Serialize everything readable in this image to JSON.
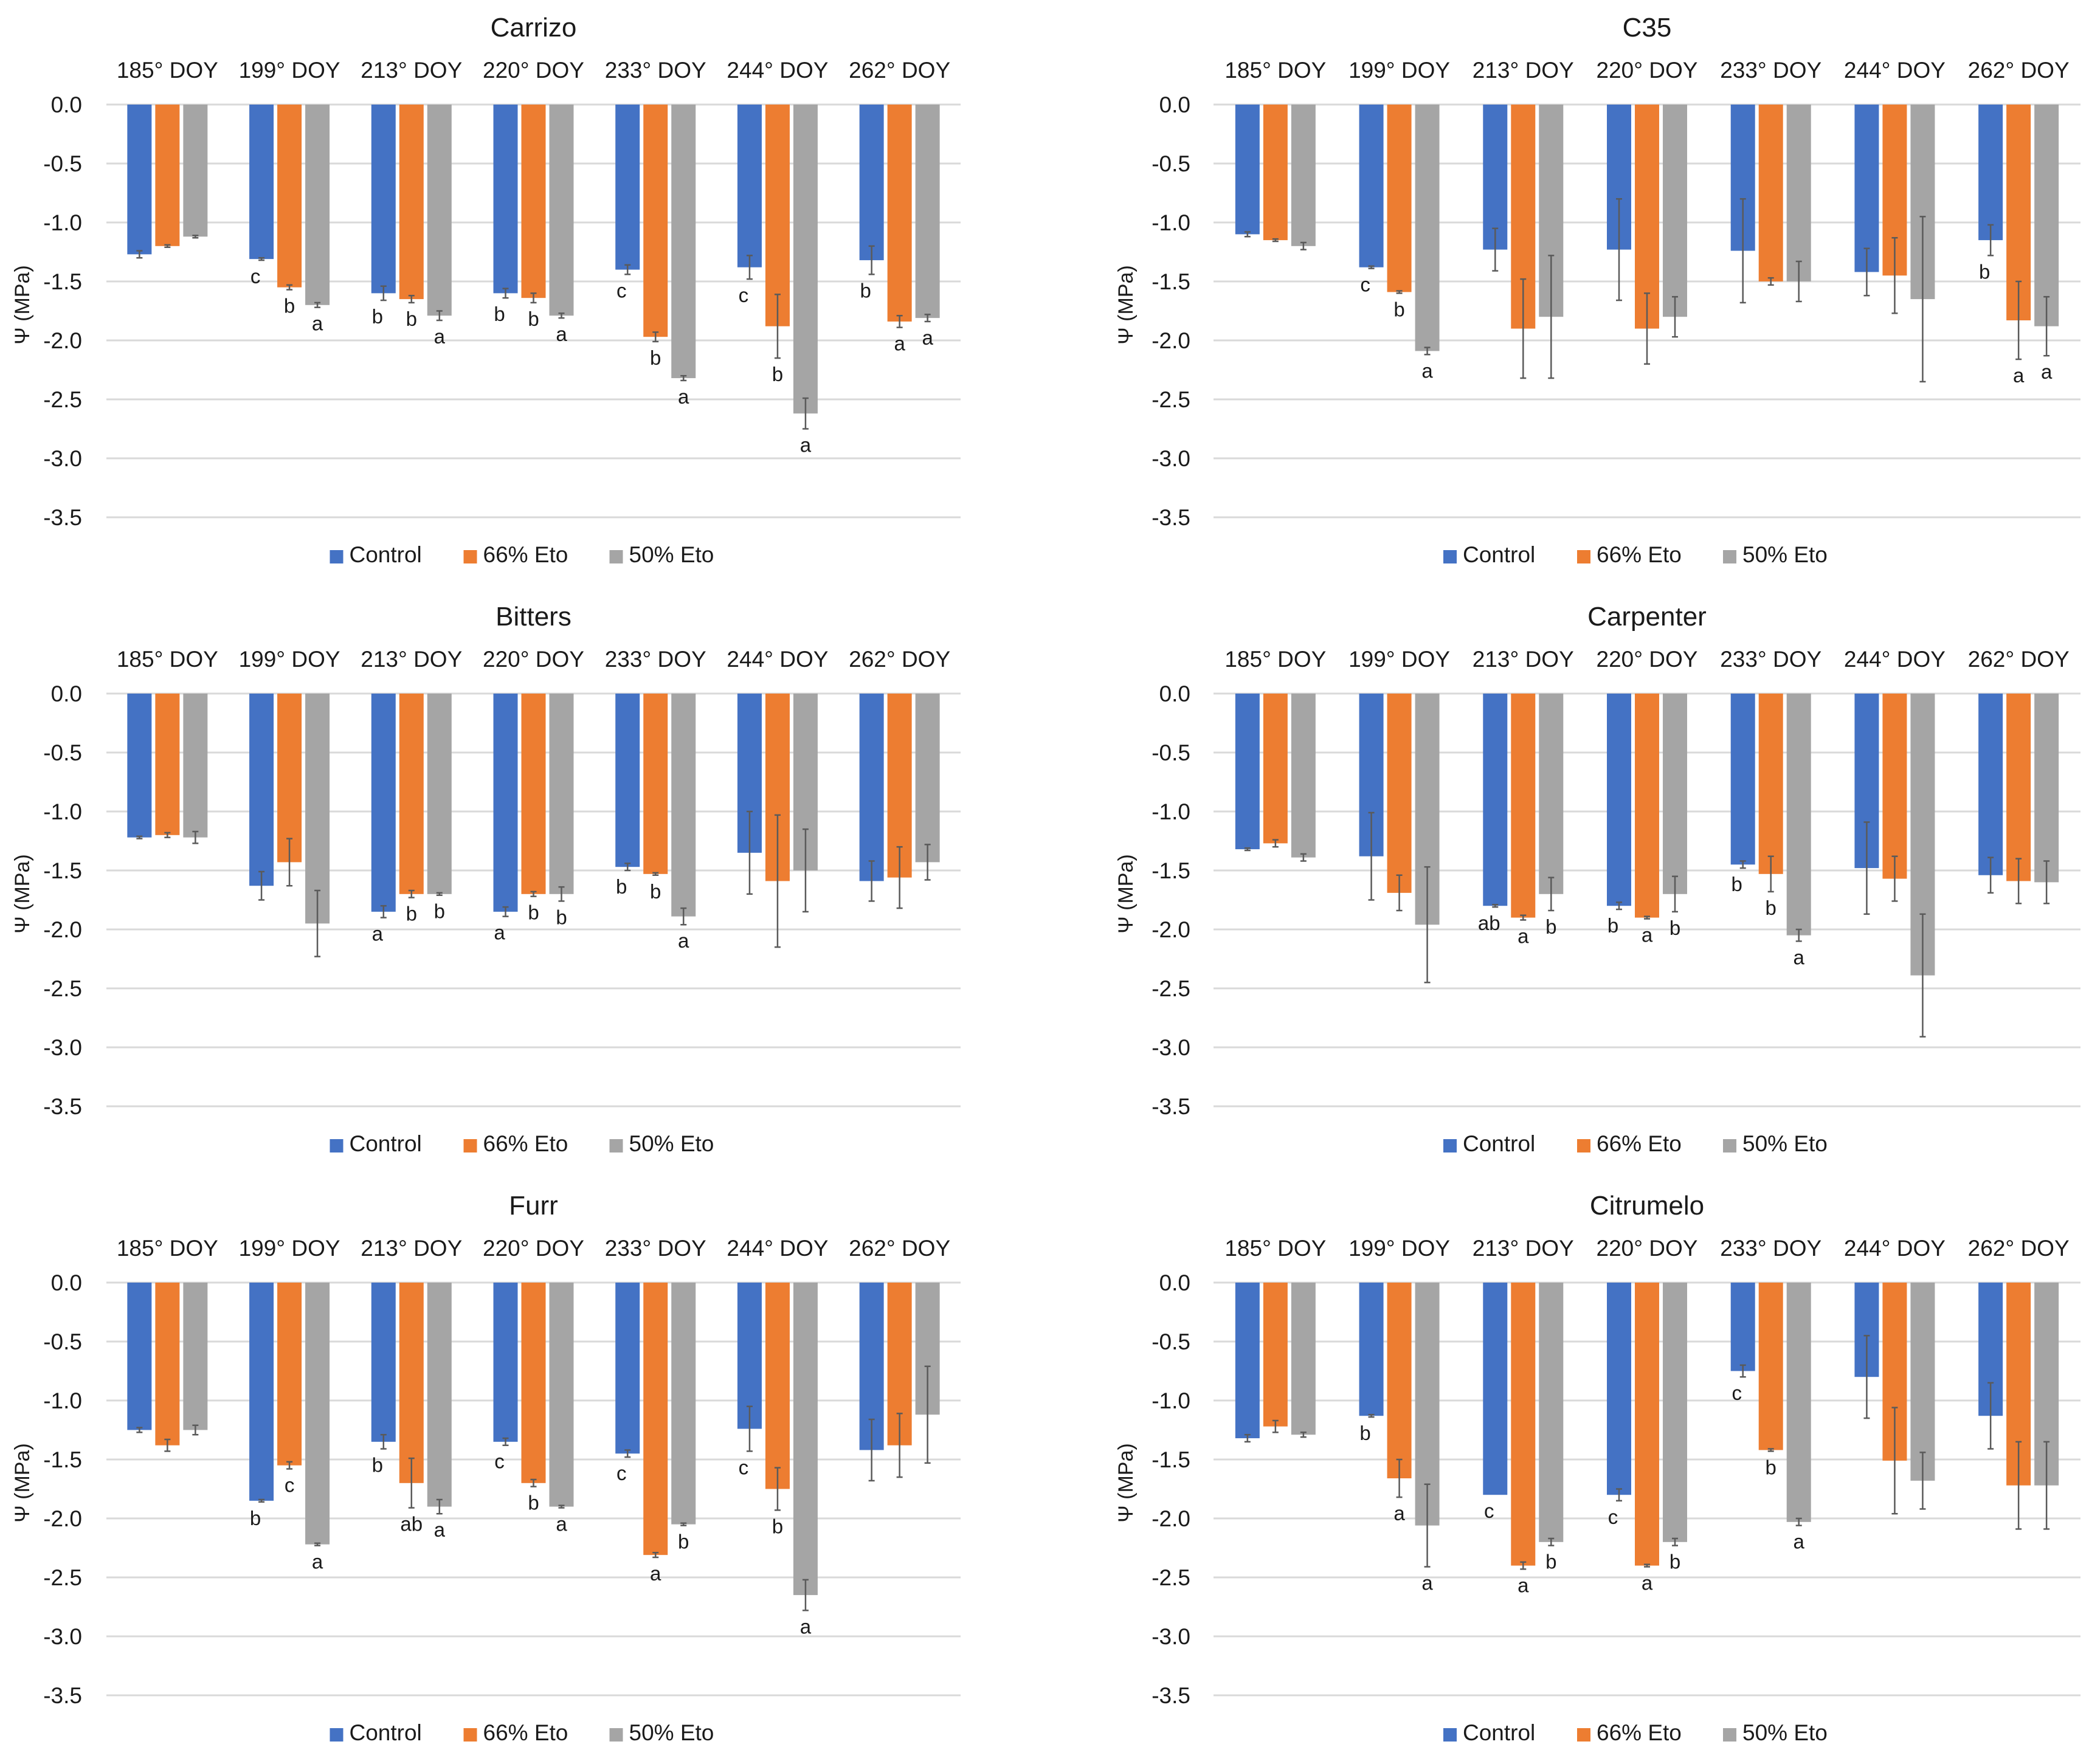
{
  "figure": {
    "legend": [
      {
        "name": "Control",
        "color": "#4472C4"
      },
      {
        "name": "66% Eto",
        "color": "#ED7D31"
      },
      {
        "name": "50% Eto",
        "color": "#A5A5A5"
      }
    ]
  },
  "chart_data": [
    {
      "type": "bar",
      "title": "Carrizo",
      "xlabel": "",
      "ylabel": "Ψ (MPa)",
      "ylim": [
        -3.5,
        0.0
      ],
      "yticks": [
        "0.0",
        "-0.5",
        "-1.0",
        "-1.5",
        "-2.0",
        "-2.5",
        "-3.0",
        "-3.5"
      ],
      "ytick_values": [
        0.0,
        -0.5,
        -1.0,
        -1.5,
        -2.0,
        -2.5,
        -3.0,
        -3.5
      ],
      "grid": true,
      "legend_position": "bottom",
      "categories": [
        "185° DOY",
        "199° DOY",
        "213° DOY",
        "220° DOY",
        "233° DOY",
        "244° DOY",
        "262° DOY"
      ],
      "series": [
        {
          "name": "Control",
          "values": [
            -1.27,
            -1.31,
            -1.6,
            -1.6,
            -1.4,
            -1.38,
            -1.32
          ],
          "error": [
            0.03,
            0.01,
            0.06,
            0.04,
            0.04,
            0.1,
            0.12
          ],
          "letters": [
            "",
            "c",
            "b",
            "b",
            "c",
            "c",
            "b"
          ]
        },
        {
          "name": "66% Eto",
          "values": [
            -1.2,
            -1.55,
            -1.65,
            -1.64,
            -1.97,
            -1.88,
            -1.84
          ],
          "error": [
            0.01,
            0.02,
            0.03,
            0.04,
            0.04,
            0.27,
            0.05
          ],
          "letters": [
            "",
            "b",
            "b",
            "b",
            "b",
            "b",
            "a"
          ]
        },
        {
          "name": "50% Eto",
          "values": [
            -1.12,
            -1.7,
            -1.79,
            -1.79,
            -2.32,
            -2.62,
            -1.81
          ],
          "error": [
            0.01,
            0.02,
            0.04,
            0.02,
            0.02,
            0.13,
            0.03
          ],
          "letters": [
            "",
            "a",
            "a",
            "a",
            "a",
            "a",
            "a"
          ]
        }
      ]
    },
    {
      "type": "bar",
      "title": "C35",
      "xlabel": "",
      "ylabel": "Ψ (MPa)",
      "ylim": [
        -3.5,
        0.0
      ],
      "yticks": [
        "0.0",
        "-0.5",
        "-1.0",
        "-1.5",
        "-2.0",
        "-2.5",
        "-3.0",
        "-3.5"
      ],
      "ytick_values": [
        0.0,
        -0.5,
        -1.0,
        -1.5,
        -2.0,
        -2.5,
        -3.0,
        -3.5
      ],
      "grid": true,
      "legend_position": "bottom",
      "categories": [
        "185° DOY",
        "199° DOY",
        "213° DOY",
        "220° DOY",
        "233° DOY",
        "244° DOY",
        "262° DOY"
      ],
      "series": [
        {
          "name": "Control",
          "values": [
            -1.1,
            -1.38,
            -1.23,
            -1.23,
            -1.24,
            -1.42,
            -1.15
          ],
          "error": [
            0.02,
            0.01,
            0.18,
            0.43,
            0.44,
            0.2,
            0.13
          ],
          "letters": [
            "",
            "c",
            "",
            "",
            "",
            "",
            "b"
          ]
        },
        {
          "name": "66% Eto",
          "values": [
            -1.15,
            -1.59,
            -1.9,
            -1.9,
            -1.5,
            -1.45,
            -1.83
          ],
          "error": [
            0.01,
            0.01,
            0.42,
            0.3,
            0.03,
            0.32,
            0.33
          ],
          "letters": [
            "",
            "b",
            "",
            "",
            "",
            "",
            "a"
          ]
        },
        {
          "name": "50% Eto",
          "values": [
            -1.2,
            -2.09,
            -1.8,
            -1.8,
            -1.5,
            -1.65,
            -1.88
          ],
          "error": [
            0.03,
            0.03,
            0.52,
            0.17,
            0.17,
            0.7,
            0.25
          ],
          "letters": [
            "",
            "a",
            "",
            "",
            "",
            "",
            "a"
          ]
        }
      ]
    },
    {
      "type": "bar",
      "title": "Bitters",
      "xlabel": "",
      "ylabel": "Ψ (MPa)",
      "ylim": [
        -3.5,
        0.0
      ],
      "yticks": [
        "0.0",
        "-0.5",
        "-1.0",
        "-1.5",
        "-2.0",
        "-2.5",
        "-3.0",
        "-3.5"
      ],
      "ytick_values": [
        0.0,
        -0.5,
        -1.0,
        -1.5,
        -2.0,
        -2.5,
        -3.0,
        -3.5
      ],
      "grid": true,
      "legend_position": "bottom",
      "categories": [
        "185° DOY",
        "199° DOY",
        "213° DOY",
        "220° DOY",
        "233° DOY",
        "244° DOY",
        "262° DOY"
      ],
      "series": [
        {
          "name": "Control",
          "values": [
            -1.22,
            -1.63,
            -1.85,
            -1.85,
            -1.47,
            -1.35,
            -1.59
          ],
          "error": [
            0.01,
            0.12,
            0.05,
            0.04,
            0.03,
            0.35,
            0.17
          ],
          "letters": [
            "",
            "",
            "a",
            "a",
            "b",
            "",
            ""
          ]
        },
        {
          "name": "66% Eto",
          "values": [
            -1.2,
            -1.43,
            -1.7,
            -1.7,
            -1.53,
            -1.59,
            -1.56
          ],
          "error": [
            0.02,
            0.2,
            0.03,
            0.02,
            0.01,
            0.56,
            0.26
          ],
          "letters": [
            "",
            "",
            "b",
            "b",
            "b",
            "",
            ""
          ]
        },
        {
          "name": "50% Eto",
          "values": [
            -1.22,
            -1.95,
            -1.7,
            -1.7,
            -1.89,
            -1.5,
            -1.43
          ],
          "error": [
            0.05,
            0.28,
            0.01,
            0.06,
            0.07,
            0.35,
            0.15
          ],
          "letters": [
            "",
            "",
            "b",
            "b",
            "a",
            "",
            ""
          ]
        }
      ]
    },
    {
      "type": "bar",
      "title": "Carpenter",
      "xlabel": "",
      "ylabel": "Ψ (MPa)",
      "ylim": [
        -3.5,
        0.0
      ],
      "yticks": [
        "0.0",
        "-0.5",
        "-1.0",
        "-1.5",
        "-2.0",
        "-2.5",
        "-3.0",
        "-3.5"
      ],
      "ytick_values": [
        0.0,
        -0.5,
        -1.0,
        -1.5,
        -2.0,
        -2.5,
        -3.0,
        -3.5
      ],
      "grid": true,
      "legend_position": "bottom",
      "categories": [
        "185° DOY",
        "199° DOY",
        "213° DOY",
        "220° DOY",
        "233° DOY",
        "244° DOY",
        "262° DOY"
      ],
      "series": [
        {
          "name": "Control",
          "values": [
            -1.32,
            -1.38,
            -1.8,
            -1.8,
            -1.45,
            -1.48,
            -1.54
          ],
          "error": [
            0.01,
            0.37,
            0.01,
            0.03,
            0.03,
            0.39,
            0.15
          ],
          "letters": [
            "",
            "",
            "ab",
            "b",
            "b",
            "",
            ""
          ]
        },
        {
          "name": "66% Eto",
          "values": [
            -1.27,
            -1.69,
            -1.9,
            -1.9,
            -1.53,
            -1.57,
            -1.59
          ],
          "error": [
            0.03,
            0.15,
            0.02,
            0.01,
            0.15,
            0.19,
            0.19
          ],
          "letters": [
            "",
            "",
            "a",
            "a",
            "b",
            "",
            ""
          ]
        },
        {
          "name": "50% Eto",
          "values": [
            -1.39,
            -1.96,
            -1.7,
            -1.7,
            -2.05,
            -2.39,
            -1.6
          ],
          "error": [
            0.03,
            0.49,
            0.14,
            0.15,
            0.05,
            0.52,
            0.18
          ],
          "letters": [
            "",
            "",
            "b",
            "b",
            "a",
            "",
            ""
          ]
        }
      ]
    },
    {
      "type": "bar",
      "title": "Furr",
      "xlabel": "",
      "ylabel": "Ψ (MPa)",
      "ylim": [
        -3.5,
        0.0
      ],
      "yticks": [
        "0.0",
        "-0.5",
        "-1.0",
        "-1.5",
        "-2.0",
        "-2.5",
        "-3.0",
        "-3.5"
      ],
      "ytick_values": [
        0.0,
        -0.5,
        -1.0,
        -1.5,
        -2.0,
        -2.5,
        -3.0,
        -3.5
      ],
      "grid": true,
      "legend_position": "bottom",
      "categories": [
        "185° DOY",
        "199° DOY",
        "213° DOY",
        "220° DOY",
        "233° DOY",
        "244° DOY",
        "262° DOY"
      ],
      "series": [
        {
          "name": "Control",
          "values": [
            -1.25,
            -1.85,
            -1.35,
            -1.35,
            -1.45,
            -1.24,
            -1.42
          ],
          "error": [
            0.02,
            0.01,
            0.06,
            0.03,
            0.03,
            0.19,
            0.26
          ],
          "letters": [
            "",
            "b",
            "b",
            "c",
            "c",
            "c",
            ""
          ]
        },
        {
          "name": "66% Eto",
          "values": [
            -1.38,
            -1.55,
            -1.7,
            -1.7,
            -2.31,
            -1.75,
            -1.38
          ],
          "error": [
            0.05,
            0.03,
            0.21,
            0.03,
            0.02,
            0.18,
            0.27
          ],
          "letters": [
            "",
            "c",
            "ab",
            "b",
            "a",
            "b",
            ""
          ]
        },
        {
          "name": "50% Eto",
          "values": [
            -1.25,
            -2.22,
            -1.9,
            -1.9,
            -2.05,
            -2.65,
            -1.12
          ],
          "error": [
            0.04,
            0.01,
            0.06,
            0.01,
            0.01,
            0.13,
            0.41
          ],
          "letters": [
            "",
            "a",
            "a",
            "a",
            "b",
            "a",
            ""
          ]
        }
      ]
    },
    {
      "type": "bar",
      "title": "Citrumelo",
      "xlabel": "",
      "ylabel": "Ψ (MPa)",
      "ylim": [
        -3.5,
        0.0
      ],
      "yticks": [
        "0.0",
        "-0.5",
        "-1.0",
        "-1.5",
        "-2.0",
        "-2.5",
        "-3.0",
        "-3.5"
      ],
      "ytick_values": [
        0.0,
        -0.5,
        -1.0,
        -1.5,
        -2.0,
        -2.5,
        -3.0,
        -3.5
      ],
      "grid": true,
      "legend_position": "bottom",
      "categories": [
        "185° DOY",
        "199° DOY",
        "213° DOY",
        "220° DOY",
        "233° DOY",
        "244° DOY",
        "262° DOY"
      ],
      "series": [
        {
          "name": "Control",
          "values": [
            -1.32,
            -1.13,
            -1.8,
            -1.8,
            -0.75,
            -0.8,
            -1.13
          ],
          "error": [
            0.03,
            0.01,
            0.0,
            0.05,
            0.05,
            0.35,
            0.28
          ],
          "letters": [
            "",
            "b",
            "c",
            "c",
            "c",
            "",
            ""
          ]
        },
        {
          "name": "66% Eto",
          "values": [
            -1.22,
            -1.66,
            -2.4,
            -2.4,
            -1.42,
            -1.51,
            -1.72
          ],
          "error": [
            0.05,
            0.16,
            0.03,
            0.01,
            0.01,
            0.45,
            0.37
          ],
          "letters": [
            "",
            "a",
            "a",
            "a",
            "b",
            "",
            ""
          ]
        },
        {
          "name": "50% Eto",
          "values": [
            -1.29,
            -2.06,
            -2.2,
            -2.2,
            -2.03,
            -1.68,
            -1.72
          ],
          "error": [
            0.02,
            0.35,
            0.03,
            0.03,
            0.03,
            0.24,
            0.37
          ],
          "letters": [
            "",
            "a",
            "b",
            "b",
            "a",
            "",
            ""
          ]
        }
      ]
    }
  ]
}
